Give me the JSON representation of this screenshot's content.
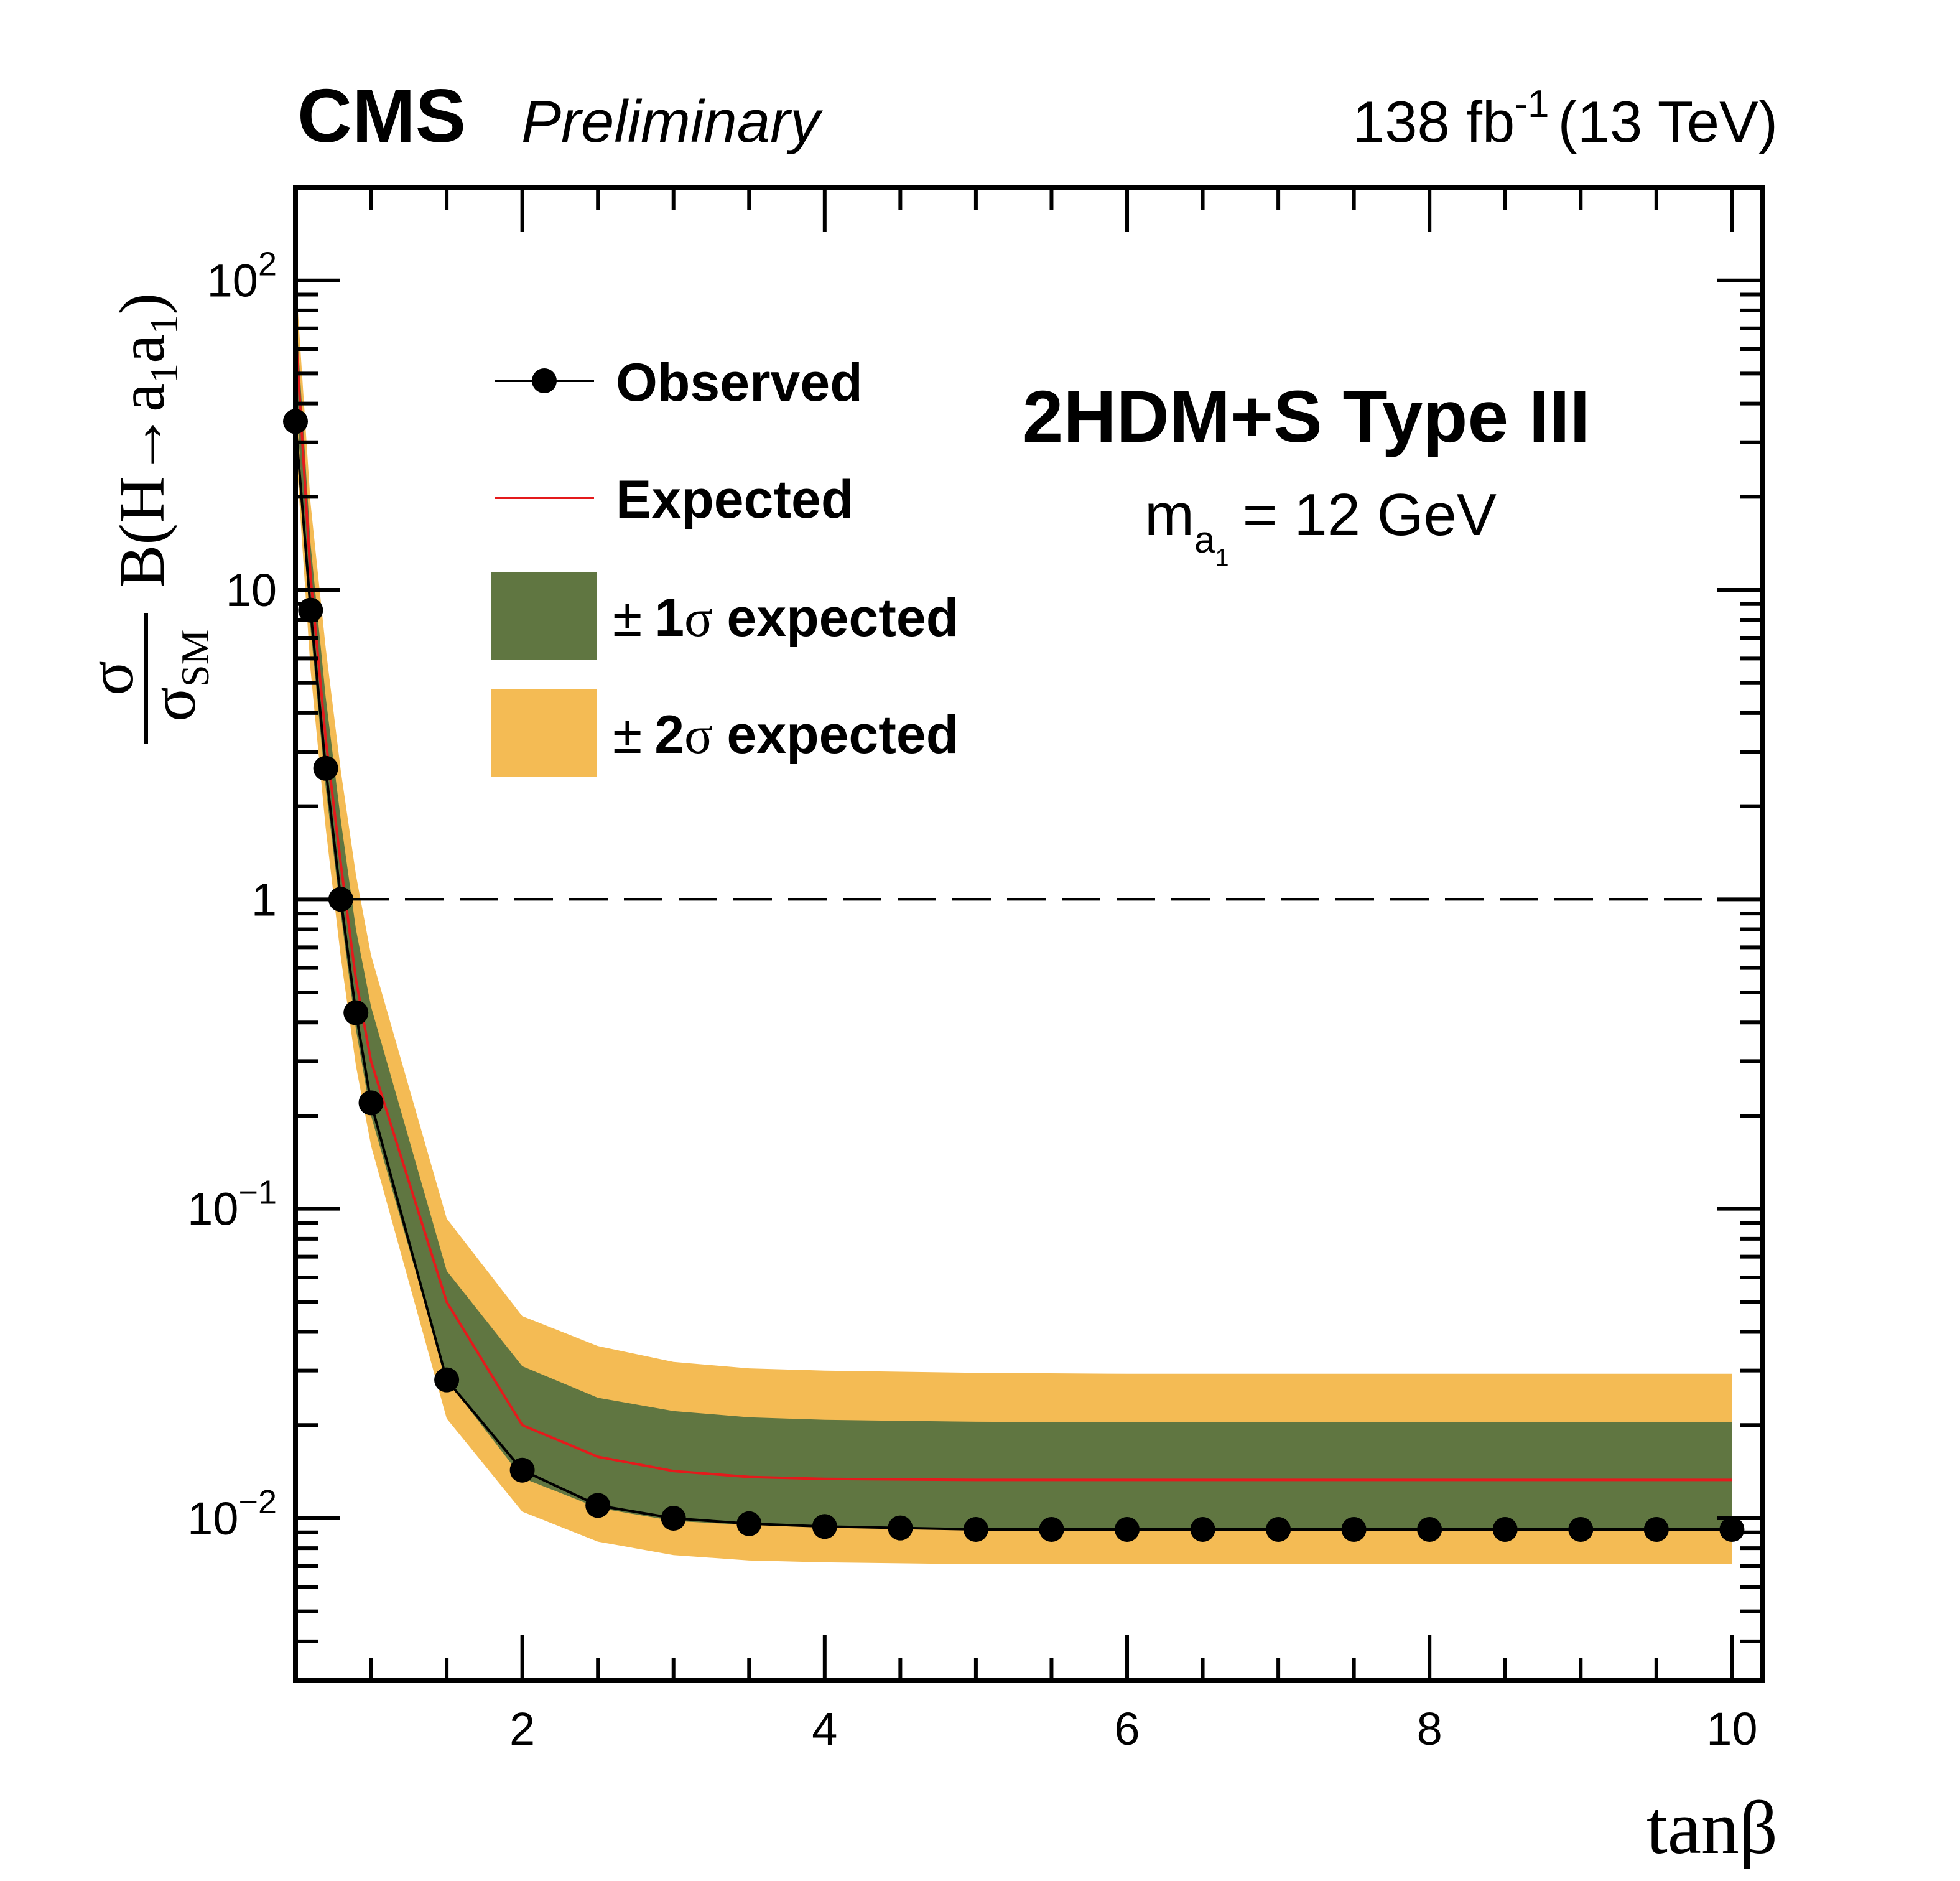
{
  "header": {
    "experiment": "CMS",
    "status": "Preliminary",
    "lumi_value": "138 fb",
    "lumi_exponent": "-1",
    "energy": "(13 TeV)"
  },
  "annotation": {
    "model": "2HDM+S Type III",
    "mass_symbol": "m",
    "mass_sub": "a",
    "mass_subsub": "1",
    "mass_value": "= 12 GeV"
  },
  "axes": {
    "x_label": "tanβ",
    "y_label_num": "σ",
    "y_label_den": "σ",
    "y_label_den_sub": "SM",
    "y_label_rest": "B(H→a",
    "y_label_sub1": "1",
    "y_label_mid": "a",
    "y_label_sub2": "1",
    "y_label_close": ")"
  },
  "legend": {
    "observed": "Observed",
    "expected": "Expected",
    "band1_pm": "±",
    "band1_n": "1",
    "band1_sigma": "σ",
    "band1_text": "expected",
    "band2_pm": "±",
    "band2_n": "2",
    "band2_sigma": "σ",
    "band2_text": "expected"
  },
  "colors": {
    "band1": "#607641",
    "band2": "#f4bb54",
    "expected": "#e41a1c",
    "observed": "#000000"
  },
  "chart_data": {
    "type": "line",
    "title": "2HDM+S Type III, m_a1 = 12 GeV",
    "xlabel": "tanβ",
    "ylabel": "σ/σ_SM B(H→a1a1)",
    "xlim": [
      0.5,
      10.2
    ],
    "ylim": [
      0.003,
      200
    ],
    "yscale": "log",
    "x_ticks": [
      2,
      4,
      6,
      8,
      10
    ],
    "x_tick_labels": [
      "2",
      "4",
      "6",
      "8",
      "10"
    ],
    "y_ticks": [
      0.01,
      0.1,
      1,
      10,
      100
    ],
    "y_tick_labels": [
      {
        "base": "10",
        "exp": "−2"
      },
      {
        "base": "10",
        "exp": "−1"
      },
      {
        "base": "1",
        "exp": ""
      },
      {
        "base": "10",
        "exp": ""
      },
      {
        "base": "10",
        "exp": "2"
      }
    ],
    "reference_line": 1,
    "series": [
      {
        "name": "Observed",
        "x": [
          0.5,
          0.6,
          0.7,
          0.8,
          0.9,
          1.0,
          1.5,
          2.0,
          2.5,
          3.0,
          3.5,
          4.0,
          4.5,
          5.0,
          5.5,
          6.0,
          6.5,
          7.0,
          7.5,
          8.0,
          8.5,
          9.0,
          9.5,
          10.0
        ],
        "values": [
          35,
          8.6,
          2.65,
          1.0,
          0.43,
          0.22,
          0.028,
          0.0143,
          0.011,
          0.01,
          0.0096,
          0.0094,
          0.0093,
          0.0092,
          0.0092,
          0.0092,
          0.0092,
          0.0092,
          0.0092,
          0.0092,
          0.0092,
          0.0092,
          0.0092,
          0.0092
        ]
      },
      {
        "name": "Expected",
        "x": [
          0.5,
          0.6,
          0.7,
          0.8,
          0.9,
          1.0,
          1.5,
          2.0,
          2.5,
          3.0,
          3.5,
          4.0,
          5.0,
          6.0,
          7.0,
          8.0,
          9.0,
          10.0
        ],
        "values": [
          70,
          11,
          3.3,
          1.3,
          0.55,
          0.3,
          0.05,
          0.02,
          0.0158,
          0.0142,
          0.0136,
          0.0134,
          0.0133,
          0.0133,
          0.0133,
          0.0133,
          0.0133,
          0.0133
        ]
      },
      {
        "name": "± 1σ expected",
        "x": [
          0.5,
          0.6,
          0.7,
          0.8,
          0.9,
          1.0,
          1.5,
          2.0,
          2.5,
          3.0,
          3.5,
          4.0,
          5.0,
          6.0,
          7.0,
          8.0,
          9.0,
          10.0
        ],
        "low": [
          45,
          7.5,
          2.3,
          0.9,
          0.38,
          0.2,
          0.028,
          0.0135,
          0.0108,
          0.0098,
          0.0095,
          0.0094,
          0.0093,
          0.0093,
          0.0093,
          0.0093,
          0.0093,
          0.0093
        ],
        "high": [
          85,
          14,
          4.5,
          1.8,
          0.8,
          0.45,
          0.063,
          0.031,
          0.0245,
          0.0222,
          0.0212,
          0.0208,
          0.0205,
          0.0204,
          0.0204,
          0.0204,
          0.0204,
          0.0204
        ]
      },
      {
        "name": "± 2σ expected",
        "x": [
          0.5,
          0.6,
          0.7,
          0.8,
          0.9,
          1.0,
          1.5,
          2.0,
          2.5,
          3.0,
          3.5,
          4.0,
          5.0,
          6.0,
          7.0,
          8.0,
          9.0,
          10.0
        ],
        "low": [
          30,
          5.5,
          1.7,
          0.65,
          0.29,
          0.16,
          0.021,
          0.0105,
          0.0084,
          0.0076,
          0.0073,
          0.0072,
          0.0071,
          0.0071,
          0.0071,
          0.0071,
          0.0071,
          0.0071
        ],
        "high": [
          105,
          19,
          6.5,
          2.6,
          1.2,
          0.66,
          0.093,
          0.045,
          0.036,
          0.032,
          0.0305,
          0.03,
          0.0295,
          0.0293,
          0.0293,
          0.0293,
          0.0293,
          0.0293
        ]
      }
    ]
  }
}
